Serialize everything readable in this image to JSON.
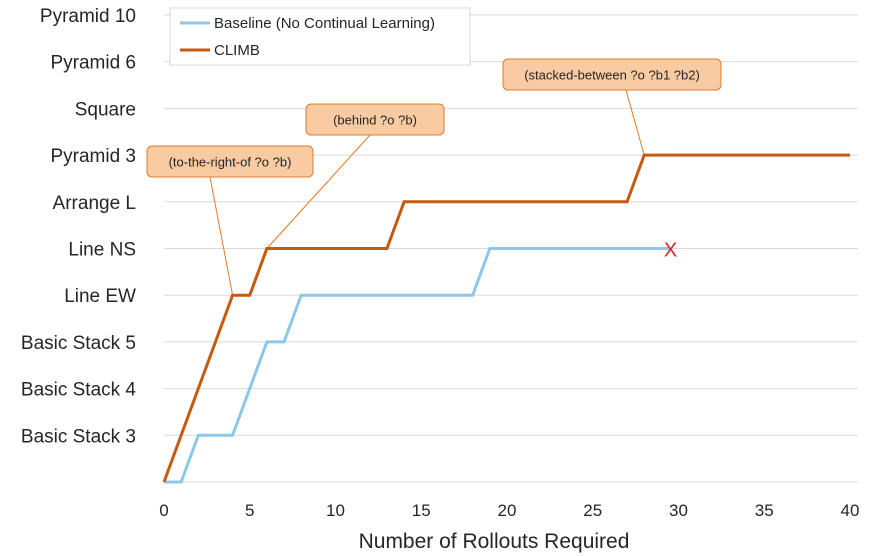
{
  "chart_data": {
    "type": "line",
    "xlabel": "Number of Rollouts Required",
    "ylabel": "",
    "xlim": [
      0,
      40
    ],
    "xticks": [
      0,
      5,
      10,
      15,
      20,
      25,
      30,
      35,
      40
    ],
    "ylim": [
      0,
      10
    ],
    "ytick_labels": [
      "Basic Stack 3",
      "Basic Stack 4",
      "Basic Stack 5",
      "Line EW",
      "Line NS",
      "Arrange L",
      "Pyramid 3",
      "Square",
      "Pyramid 6",
      "Pyramid 10"
    ],
    "grid": "horizontal",
    "legend_position": "top-left",
    "series": [
      {
        "name": "Baseline (No Continual Learning)",
        "color": "#8cc8e8",
        "points": [
          [
            0,
            0
          ],
          [
            1,
            0
          ],
          [
            2,
            1
          ],
          [
            4,
            1
          ],
          [
            6,
            3
          ],
          [
            7,
            3
          ],
          [
            8,
            4
          ],
          [
            18,
            4
          ],
          [
            19,
            5
          ],
          [
            29.5,
            5
          ]
        ],
        "end_marker": {
          "text": "X",
          "color": "#e02020",
          "x": 29.5,
          "y": 5
        }
      },
      {
        "name": "CLIMB",
        "color": "#c55a11",
        "points": [
          [
            0,
            0
          ],
          [
            4,
            4
          ],
          [
            5,
            4
          ],
          [
            6,
            5
          ],
          [
            13,
            5
          ],
          [
            14,
            6
          ],
          [
            27,
            6
          ],
          [
            28,
            7
          ],
          [
            40,
            7
          ]
        ]
      }
    ],
    "annotations": [
      {
        "text": "(to-the-right-of ?o ?b)",
        "x": 4,
        "y": 4
      },
      {
        "text": "(behind ?o ?b)",
        "x": 6,
        "y": 5
      },
      {
        "text": "(stacked-between ?o ?b1 ?b2)",
        "x": 28,
        "y": 7
      }
    ],
    "annotation_style": {
      "fill": "#f8cba2",
      "stroke": "#e07b2a"
    }
  }
}
